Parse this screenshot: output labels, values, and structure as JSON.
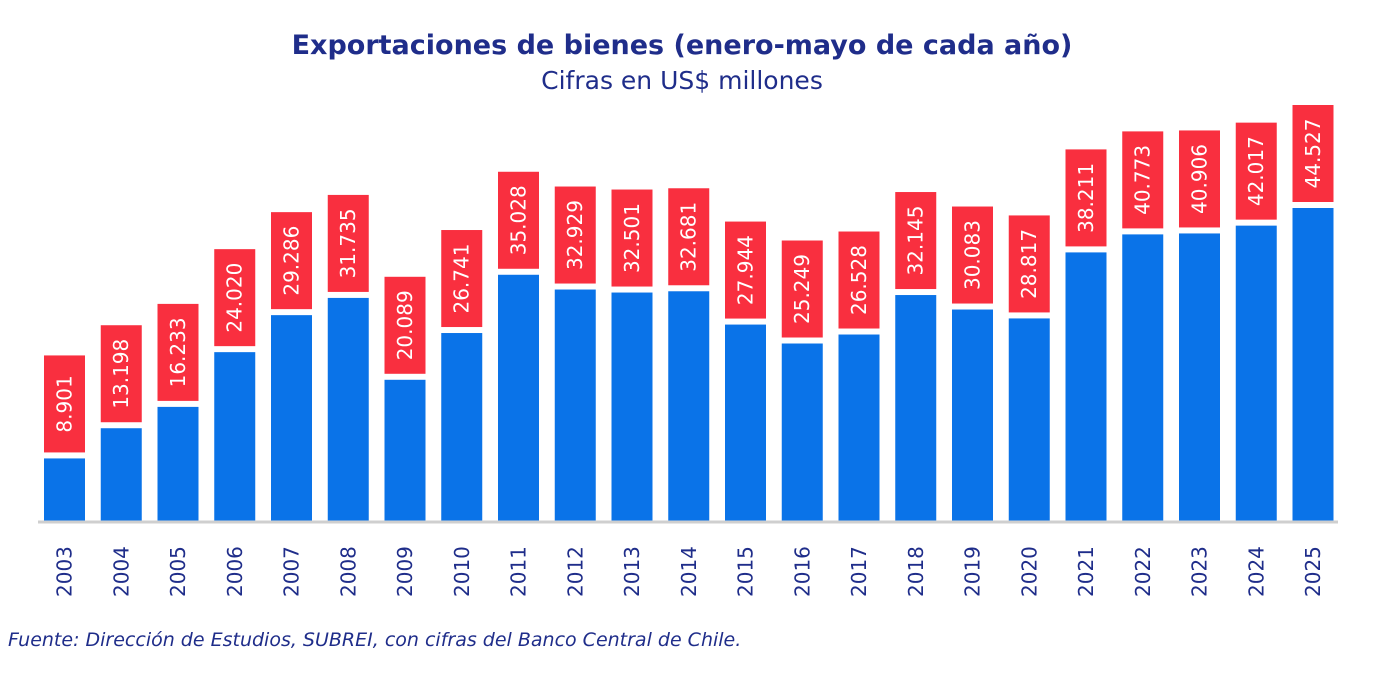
{
  "chart_data": {
    "type": "bar",
    "title": "Exportaciones de bienes (enero-mayo de cada año)",
    "subtitle": "Cifras en US$ millones",
    "xlabel": "",
    "ylabel": "",
    "categories": [
      "2003",
      "2004",
      "2005",
      "2006",
      "2007",
      "2008",
      "2009",
      "2010",
      "2011",
      "2012",
      "2013",
      "2014",
      "2015",
      "2016",
      "2017",
      "2018",
      "2019",
      "2020",
      "2021",
      "2022",
      "2023",
      "2024",
      "2025"
    ],
    "values": [
      8901,
      13198,
      16233,
      24020,
      29286,
      31735,
      20089,
      26741,
      35028,
      32929,
      32501,
      32681,
      27944,
      25249,
      26528,
      32145,
      30083,
      28817,
      38211,
      40773,
      40906,
      42017,
      44527
    ],
    "value_labels": [
      "8.901",
      "13.198",
      "16.233",
      "24.020",
      "29.286",
      "31.735",
      "20.089",
      "26.741",
      "35.028",
      "32.929",
      "32.501",
      "32.681",
      "27.944",
      "25.249",
      "26.528",
      "32.145",
      "30.083",
      "28.817",
      "38.211",
      "40.773",
      "40.906",
      "42.017",
      "44.527"
    ],
    "ylim": [
      0,
      50000
    ],
    "grid": false,
    "legend": "none",
    "colors": {
      "bar": "#0a73e8",
      "label_box": "#f92f3f",
      "label_text": "#ffffff",
      "tick_text": "#1f2d8a",
      "axis": "#cfcfcf",
      "title": "#1f2d8a"
    }
  },
  "source": "Fuente: Dirección de Estudios, SUBREI, con cifras del Banco Central de Chile."
}
